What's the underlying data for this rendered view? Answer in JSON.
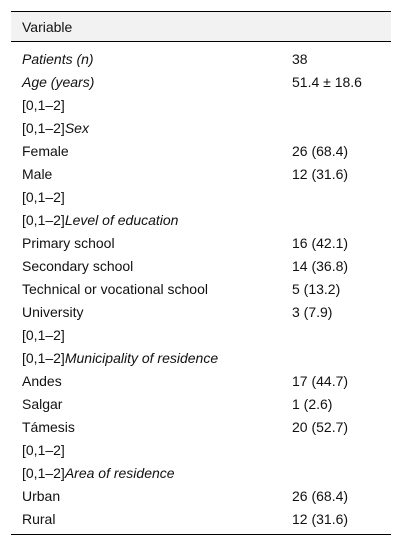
{
  "table": {
    "header": {
      "variable": "Variable",
      "value": ""
    },
    "rows": [
      {
        "prefix": "",
        "label": "Patients (n)",
        "value": "38",
        "italic": true
      },
      {
        "prefix": "",
        "label": "Age (years)",
        "value": "51.4 ± 18.6",
        "italic": true
      },
      {
        "prefix": "[0,1–2]",
        "label": "",
        "value": "",
        "italic": false
      },
      {
        "prefix": "[0,1–2]",
        "label": "Sex",
        "value": "",
        "italic": true
      },
      {
        "prefix": "",
        "label": "Female",
        "value": "26 (68.4)",
        "italic": false
      },
      {
        "prefix": "",
        "label": "Male",
        "value": "12 (31.6)",
        "italic": false
      },
      {
        "prefix": "[0,1–2]",
        "label": "",
        "value": "",
        "italic": false
      },
      {
        "prefix": "[0,1–2]",
        "label": "Level of education",
        "value": "",
        "italic": true
      },
      {
        "prefix": "",
        "label": "Primary school",
        "value": "16 (42.1)",
        "italic": false
      },
      {
        "prefix": "",
        "label": "Secondary school",
        "value": "14 (36.8)",
        "italic": false
      },
      {
        "prefix": "",
        "label": "Technical or vocational school",
        "value": "5 (13.2)",
        "italic": false
      },
      {
        "prefix": "",
        "label": "University",
        "value": "3 (7.9)",
        "italic": false
      },
      {
        "prefix": "[0,1–2]",
        "label": "",
        "value": "",
        "italic": false
      },
      {
        "prefix": "[0,1–2]",
        "label": "Municipality of residence",
        "value": "",
        "italic": true
      },
      {
        "prefix": "",
        "label": "Andes",
        "value": "17 (44.7)",
        "italic": false
      },
      {
        "prefix": "",
        "label": "Salgar",
        "value": "1 (2.6)",
        "italic": false
      },
      {
        "prefix": "",
        "label": "Támesis",
        "value": "20 (52.7)",
        "italic": false
      },
      {
        "prefix": "[0,1–2]",
        "label": "",
        "value": "",
        "italic": false
      },
      {
        "prefix": "[0,1–2]",
        "label": "Area of residence",
        "value": "",
        "italic": true
      },
      {
        "prefix": "",
        "label": "Urban",
        "value": "26 (68.4)",
        "italic": false
      },
      {
        "prefix": "",
        "label": "Rural",
        "value": "12 (31.6)",
        "italic": false
      }
    ]
  }
}
